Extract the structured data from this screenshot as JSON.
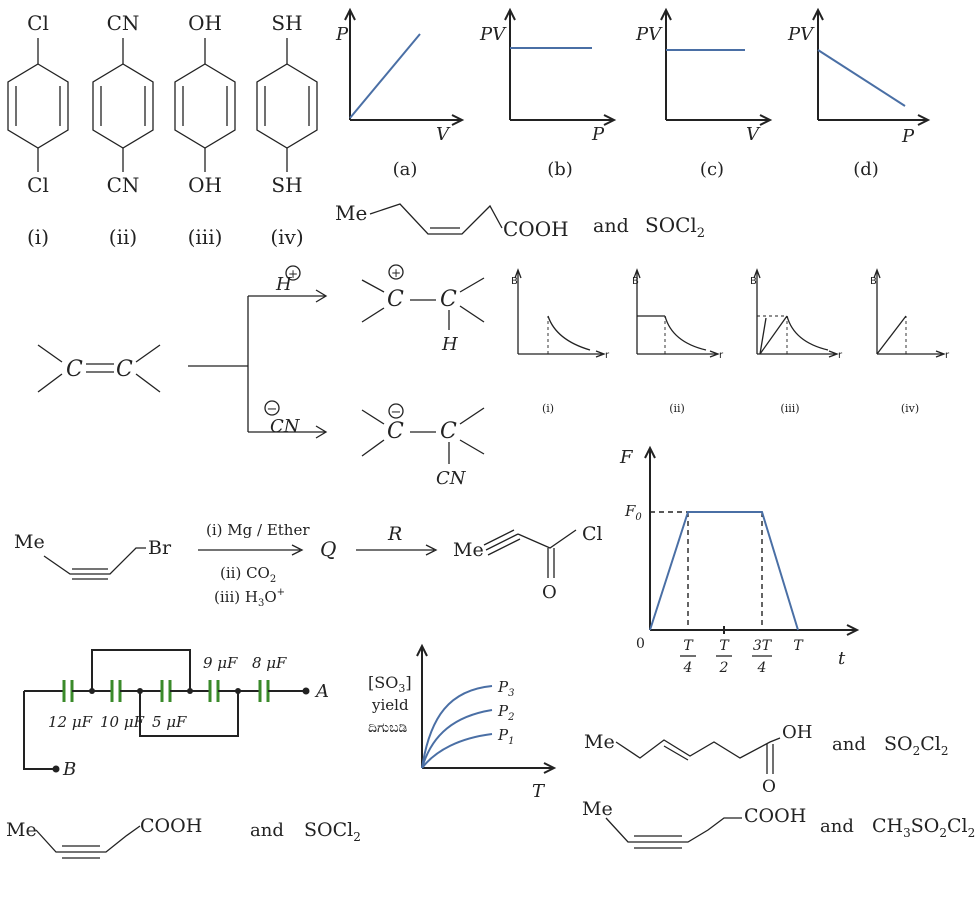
{
  "benzenes": {
    "items": [
      {
        "top": "Cl",
        "bottom": "Cl",
        "label": "(i)"
      },
      {
        "top": "CN",
        "bottom": "CN",
        "label": "(ii)"
      },
      {
        "top": "OH",
        "bottom": "OH",
        "label": "(iii)"
      },
      {
        "top": "SH",
        "bottom": "SH",
        "label": "(iv)"
      }
    ]
  },
  "gas_graphs": [
    {
      "y": "P",
      "x": "V",
      "label": "(a)",
      "shape": "increasing"
    },
    {
      "y": "PV",
      "x": "P",
      "label": "(b)",
      "shape": "constant"
    },
    {
      "y": "PV",
      "x": "V",
      "label": "(c)",
      "shape": "constant"
    },
    {
      "y": "PV",
      "x": "P",
      "label": "(d)",
      "shape": "decreasing"
    }
  ],
  "option_z_acid": {
    "me": "Me",
    "group": "COOH",
    "and": "and",
    "reagent": "SOCl",
    "sub": "2"
  },
  "alkene_reaction": {
    "h_plus": "H",
    "plus": "+",
    "cn_minus": "CN",
    "minus": "−",
    "c": "C",
    "h": "H",
    "cn": "CN"
  },
  "b_graphs": [
    {
      "y": "B",
      "x": "r",
      "label": "(i)"
    },
    {
      "y": "B",
      "x": "r",
      "label": "(ii)"
    },
    {
      "y": "B",
      "x": "r",
      "label": "(iii)"
    },
    {
      "y": "B",
      "x": "r",
      "label": "(iv)"
    }
  ],
  "grignard": {
    "me": "Me",
    "br": "Br",
    "step1": "(i) Mg / Ether",
    "step2": "(ii) CO",
    "step2_sub": "2",
    "step3": "(iii) H",
    "step3_sub": "3",
    "step3_tail": "O",
    "step3_sup": "+",
    "q": "Q",
    "r": "R",
    "cl": "Cl",
    "o": "O",
    "product_me": "Me"
  },
  "force_graph": {
    "y": "F",
    "x": "t",
    "f0": "F",
    "f0_sub": "0",
    "origin": "0",
    "ticks": [
      {
        "num": "T",
        "den": "4"
      },
      {
        "num": "T",
        "den": "2"
      },
      {
        "num": "3T",
        "den": "4"
      },
      {
        "num": "T",
        "den": ""
      }
    ]
  },
  "circuit": {
    "capacitors": [
      "12 μF",
      "10 μF",
      "5 μF",
      "9 μF",
      "8 μF"
    ],
    "a": "A",
    "b": "B"
  },
  "so3_graph": {
    "y1": "[SO",
    "y1_sub": "3",
    "y1_tail": "]",
    "y2": "yield",
    "y3": "ದಿಗುಬಡಿ",
    "x": "T",
    "series": [
      {
        "name": "P",
        "sub": "3"
      },
      {
        "name": "P",
        "sub": "2"
      },
      {
        "name": "P",
        "sub": "1"
      }
    ]
  },
  "option_trans_acid": {
    "me": "Me",
    "oh": "OH",
    "o": "O",
    "and": "and",
    "reagent": "SO",
    "sub1": "2",
    "mid": "Cl",
    "sub2": "2"
  },
  "option_alkyne_soc": {
    "me": "Me",
    "group": "COOH",
    "and": "and",
    "reagent": "SOCl",
    "sub": "2"
  },
  "option_alkyne_ch3": {
    "me": "Me",
    "group": "COOH",
    "and": "and",
    "reagent": "CH",
    "sub1": "3",
    "mid": "SO",
    "sub2": "2",
    "tail": "Cl",
    "sub3": "2"
  }
}
